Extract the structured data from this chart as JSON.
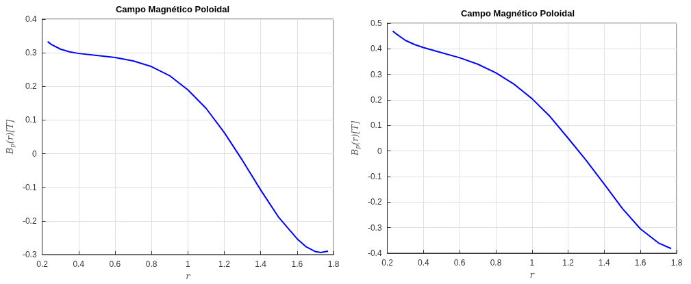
{
  "chart_data": [
    {
      "type": "line",
      "title": "Campo Magnético Poloidal",
      "xlabel": "r",
      "ylabel": "B$_{p}$(r)[T]",
      "grid": true,
      "x": [
        0.23,
        0.25,
        0.3,
        0.35,
        0.4,
        0.5,
        0.6,
        0.7,
        0.8,
        0.9,
        1.0,
        1.1,
        1.2,
        1.3,
        1.4,
        1.5,
        1.6,
        1.65,
        1.7,
        1.73,
        1.77
      ],
      "series": [
        {
          "color": "#0000ff",
          "values": [
            0.333,
            0.325,
            0.311,
            0.303,
            0.298,
            0.292,
            0.286,
            0.276,
            0.259,
            0.232,
            0.19,
            0.135,
            0.063,
            -0.02,
            -0.108,
            -0.19,
            -0.253,
            -0.277,
            -0.291,
            -0.294,
            -0.29
          ]
        }
      ],
      "xlim": [
        0.2,
        1.8
      ],
      "xticks": [
        0.2,
        0.4,
        0.6,
        0.8,
        1,
        1.2,
        1.4,
        1.6,
        1.8
      ],
      "ylim": [
        -0.3,
        0.4
      ],
      "yticks": [
        -0.3,
        -0.2,
        -0.1,
        0,
        0.1,
        0.2,
        0.3,
        0.4
      ]
    },
    {
      "type": "line",
      "title": "Campo Magnético Poloidal",
      "xlabel": "r",
      "ylabel": "B$_{p}$(r)[T]",
      "grid": true,
      "x": [
        0.23,
        0.25,
        0.3,
        0.35,
        0.4,
        0.5,
        0.6,
        0.7,
        0.8,
        0.9,
        1.0,
        1.1,
        1.2,
        1.3,
        1.4,
        1.5,
        1.6,
        1.7,
        1.77
      ],
      "series": [
        {
          "color": "#0000ff",
          "values": [
            0.47,
            0.458,
            0.433,
            0.417,
            0.405,
            0.385,
            0.365,
            0.34,
            0.306,
            0.262,
            0.205,
            0.135,
            0.05,
            -0.037,
            -0.13,
            -0.225,
            -0.305,
            -0.36,
            -0.382
          ]
        }
      ],
      "xlim": [
        0.2,
        1.8
      ],
      "xticks": [
        0.2,
        0.4,
        0.6,
        0.8,
        1,
        1.2,
        1.4,
        1.6,
        1.8
      ],
      "ylim": [
        -0.4,
        0.5
      ],
      "yticks": [
        -0.4,
        -0.3,
        -0.2,
        -0.1,
        0,
        0.1,
        0.2,
        0.3,
        0.4,
        0.5
      ]
    }
  ]
}
